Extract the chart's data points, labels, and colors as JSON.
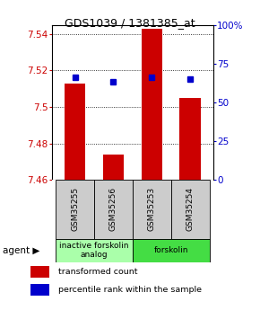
{
  "title": "GDS1039 / 1381385_at",
  "samples": [
    "GSM35255",
    "GSM35256",
    "GSM35253",
    "GSM35254"
  ],
  "red_values": [
    7.513,
    7.474,
    7.543,
    7.505
  ],
  "blue_values": [
    7.516,
    7.514,
    7.516,
    7.515
  ],
  "ylim": [
    7.46,
    7.545
  ],
  "y_ticks": [
    7.46,
    7.48,
    7.5,
    7.52,
    7.54
  ],
  "y_ticks_labels": [
    "7.46",
    "7.48",
    "7.5",
    "7.52",
    "7.54"
  ],
  "right_ticks": [
    0,
    25,
    50,
    75,
    100
  ],
  "right_tick_labels": [
    "0",
    "25",
    "50",
    "75",
    "100%"
  ],
  "right_ylim": [
    0,
    100
  ],
  "bar_color": "#cc0000",
  "dot_color": "#0000cc",
  "bar_width": 0.55,
  "agent_groups": [
    {
      "label": "inactive forskolin\nanalog",
      "span": [
        0,
        2
      ],
      "color": "#aaffaa"
    },
    {
      "label": "forskolin",
      "span": [
        2,
        4
      ],
      "color": "#44dd44"
    }
  ],
  "legend_red": "transformed count",
  "legend_blue": "percentile rank within the sample",
  "tick_color_left": "#cc0000",
  "tick_color_right": "#0000cc",
  "background_color": "#ffffff",
  "plot_bg": "#ffffff",
  "sample_box_color": "#cccccc"
}
